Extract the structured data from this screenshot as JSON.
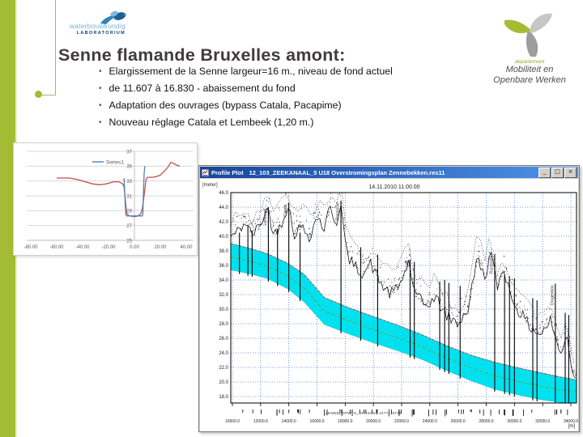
{
  "slide": {
    "title": "Senne flamande Bruxelles amont:",
    "bullets": [
      "Elargissement de la Senne largeur=16 m., niveau de fond actuel",
      "de 11.607 à 16.830  - abaissement du fond",
      "Adaptation des ouvrages (bypass Catala, Pacapime)",
      "Nouveau réglage Catala et Lembeek (1,20 m.)"
    ]
  },
  "logos": {
    "left": {
      "line1": "waterbouwkundig",
      "line2": "LABORATORIUM"
    },
    "right": {
      "line1": "departement",
      "line2": "Mobiliteit en",
      "line3": "Openbare Werken"
    }
  },
  "window": {
    "app_name": "Profile Plot",
    "document_name": "12_103_ZEEKANAAL_5 U18 Overstromingsplan Zennebekken.res11",
    "controls": [
      {
        "name": "minimize",
        "glyph": "_"
      },
      {
        "name": "restore",
        "glyph": "□"
      },
      {
        "name": "close",
        "glyph": "×"
      }
    ]
  },
  "colors": {
    "accent_green": "#a4bc33",
    "title_text": "#423a3c",
    "bullet_marker": "#5f497a",
    "series_blue": "#4f81bd",
    "series_red": "#c0504d",
    "band_cyan": "#00e1ef",
    "grid_blue": "#3a6ecc",
    "red_dash": "#c03030",
    "green_dash": "#8a9a1a"
  },
  "chart_data": [
    {
      "id": "cross-section",
      "type": "line",
      "title": "",
      "legend": [
        "Series1"
      ],
      "x_ticks": [
        "-80.00",
        "-60.00",
        "-40.00",
        "-20.00",
        "0.00",
        "20.00",
        "40.00"
      ],
      "y_ticks": [
        "37",
        "35",
        "33",
        "31",
        "29",
        "27",
        "25"
      ],
      "xlim": [
        -80,
        40
      ],
      "ylim": [
        25,
        37
      ],
      "grid": true,
      "legend_position": "top-center",
      "series": [
        {
          "name": "Series1",
          "color": "#4f81bd",
          "points": [
            [
              -8,
              33.4
            ],
            [
              -7,
              29.5
            ],
            [
              -6.5,
              28.4
            ],
            [
              -6,
              28.3
            ],
            [
              6,
              28.3
            ],
            [
              6.5,
              28.5
            ],
            [
              7,
              31.5
            ],
            [
              7.5,
              34.0
            ],
            [
              8,
              35.0
            ]
          ]
        },
        {
          "name": "existing profile",
          "color": "#c0504d",
          "points": [
            [
              -60,
              33.4
            ],
            [
              -50,
              33.4
            ],
            [
              -44,
              33.2
            ],
            [
              -38,
              32.9
            ],
            [
              -32,
              32.6
            ],
            [
              -27,
              32.5
            ],
            [
              -22,
              32.6
            ],
            [
              -16,
              32.9
            ],
            [
              -12,
              32.9
            ],
            [
              -9,
              32.6
            ],
            [
              -8,
              32.2
            ],
            [
              -7,
              30.5
            ],
            [
              -6,
              28.6
            ],
            [
              -4,
              28.3
            ],
            [
              0,
              28.2
            ],
            [
              3,
              28.3
            ],
            [
              5,
              28.6
            ],
            [
              6,
              29.2
            ],
            [
              7,
              30.4
            ],
            [
              8,
              31.8
            ],
            [
              9,
              33.2
            ],
            [
              10,
              33.5
            ],
            [
              14,
              33.5
            ],
            [
              17,
              33.6
            ],
            [
              20,
              33.8
            ],
            [
              23,
              34.3
            ],
            [
              26,
              34.9
            ],
            [
              28,
              35.5
            ],
            [
              30,
              35.4
            ],
            [
              33,
              35.1
            ],
            [
              35,
              35.0
            ]
          ]
        }
      ]
    },
    {
      "id": "profile-plot",
      "type": "profile",
      "title": "14.11.2010 11.00.00",
      "y_unit": "[meter]",
      "x_unit": "[m]",
      "footer_label": "ZENNE_OPWTS_BRUSSEL 2477 - 9746",
      "y_ticks": [
        "46.0",
        "44.0",
        "42.0",
        "40.0",
        "38.0",
        "36.0",
        "34.0",
        "32.0",
        "30.0",
        "28.0",
        "26.0",
        "24.0",
        "22.0",
        "20.0",
        "18.0"
      ],
      "x_ticks": [
        "10000.0",
        "12000.0",
        "14000.0",
        "16000.0",
        "18000.0",
        "20000.0",
        "22000.0",
        "24000.0",
        "26000.0",
        "28000.0",
        "30000.0",
        "32000.0",
        "34000.0"
      ],
      "x_first": 10000,
      "x_step": 2000,
      "xlim": [
        9900,
        34410
      ],
      "ylim": [
        17.1,
        46.0
      ],
      "grid": true,
      "band_top": [
        [
          9900,
          39.0
        ],
        [
          11340,
          38.3
        ],
        [
          12490,
          37.6
        ],
        [
          13930,
          36.3
        ],
        [
          15080,
          34.8
        ],
        [
          16520,
          31.6
        ],
        [
          18250,
          30.2
        ],
        [
          19980,
          29.0
        ],
        [
          21710,
          27.8
        ],
        [
          23440,
          26.5
        ],
        [
          25160,
          25.0
        ],
        [
          26890,
          23.7
        ],
        [
          28620,
          22.7
        ],
        [
          30350,
          21.9
        ],
        [
          31790,
          21.3
        ],
        [
          33230,
          20.7
        ],
        [
          34410,
          20.3
        ]
      ],
      "band_bottom": [
        [
          9900,
          35.4
        ],
        [
          11340,
          34.8
        ],
        [
          12490,
          34.2
        ],
        [
          13930,
          32.8
        ],
        [
          15080,
          31.0
        ],
        [
          16520,
          27.9
        ],
        [
          18250,
          26.6
        ],
        [
          19980,
          25.4
        ],
        [
          21710,
          24.3
        ],
        [
          23440,
          23.1
        ],
        [
          25160,
          21.6
        ],
        [
          26890,
          20.2
        ],
        [
          28620,
          19.0
        ],
        [
          30350,
          18.2
        ],
        [
          31790,
          17.6
        ],
        [
          33230,
          17.2
        ],
        [
          34410,
          17.0
        ]
      ],
      "terrain": [
        [
          9900,
          40.0
        ],
        [
          10470,
          40.8
        ],
        [
          10930,
          42.0
        ],
        [
          11340,
          40.2
        ],
        [
          11790,
          41.0
        ],
        [
          12540,
          43.9
        ],
        [
          12940,
          40.0
        ],
        [
          13460,
          41.8
        ],
        [
          13980,
          44.5
        ],
        [
          14320,
          40.3
        ],
        [
          14890,
          41.3
        ],
        [
          15470,
          40.0
        ],
        [
          16040,
          42.8
        ],
        [
          16500,
          41.0
        ],
        [
          16960,
          44.2
        ],
        [
          17360,
          41.5
        ],
        [
          17650,
          44.8
        ],
        [
          18110,
          37.5
        ],
        [
          18570,
          36.0
        ],
        [
          19260,
          35.0
        ],
        [
          19830,
          36.2
        ],
        [
          20520,
          33.5
        ],
        [
          21210,
          32.0
        ],
        [
          21780,
          33.0
        ],
        [
          22530,
          36.5
        ],
        [
          22930,
          32.0
        ],
        [
          23670,
          30.5
        ],
        [
          24420,
          31.5
        ],
        [
          25220,
          29.0
        ],
        [
          25970,
          28.0
        ],
        [
          26720,
          30.0
        ],
        [
          27410,
          37.5
        ],
        [
          27860,
          34.0
        ],
        [
          28320,
          37.8
        ],
        [
          28780,
          33.0
        ],
        [
          29240,
          35.8
        ],
        [
          29700,
          32.0
        ],
        [
          30390,
          29.5
        ],
        [
          31140,
          27.5
        ],
        [
          31880,
          26.5
        ],
        [
          32570,
          28.5
        ],
        [
          33260,
          23.5
        ],
        [
          33720,
          27.0
        ],
        [
          34060,
          21.5
        ],
        [
          34410,
          21.0
        ]
      ],
      "structures": [
        {
          "ch": 10500,
          "top": 40.5
        },
        {
          "ch": 11100,
          "top": 41.5
        },
        {
          "ch": 11400,
          "top": 40.8
        },
        {
          "ch": 12550,
          "top": 44.0,
          "label": "Lembeek"
        },
        {
          "ch": 13200,
          "top": 41.0
        },
        {
          "ch": 14000,
          "top": 44.6,
          "label": "Catala"
        },
        {
          "ch": 14800,
          "top": 40.5
        },
        {
          "ch": 17700,
          "top": 44.9,
          "label": "Pacapime"
        },
        {
          "ch": 19100,
          "top": 38.5
        },
        {
          "ch": 20300,
          "top": 37.5
        },
        {
          "ch": 22600,
          "top": 36.8,
          "label": "Lot"
        },
        {
          "ch": 22900,
          "top": 36.5
        },
        {
          "ch": 24700,
          "top": 33.8
        },
        {
          "ch": 25050,
          "top": 34.0
        },
        {
          "ch": 25350,
          "top": 33.6
        },
        {
          "ch": 26150,
          "top": 33.2
        },
        {
          "ch": 28600,
          "top": 37.6,
          "label": "Ruisbroek"
        },
        {
          "ch": 29300,
          "top": 34.8
        },
        {
          "ch": 29650,
          "top": 34.5
        },
        {
          "ch": 30000,
          "top": 34.2
        },
        {
          "ch": 31300,
          "top": 31.5
        },
        {
          "ch": 31600,
          "top": 31.2
        },
        {
          "ch": 32900,
          "top": 33.5,
          "label": "Drogenbos"
        },
        {
          "ch": 33600,
          "top": 29.5
        },
        {
          "ch": 33850,
          "top": 29.2
        }
      ]
    }
  ]
}
